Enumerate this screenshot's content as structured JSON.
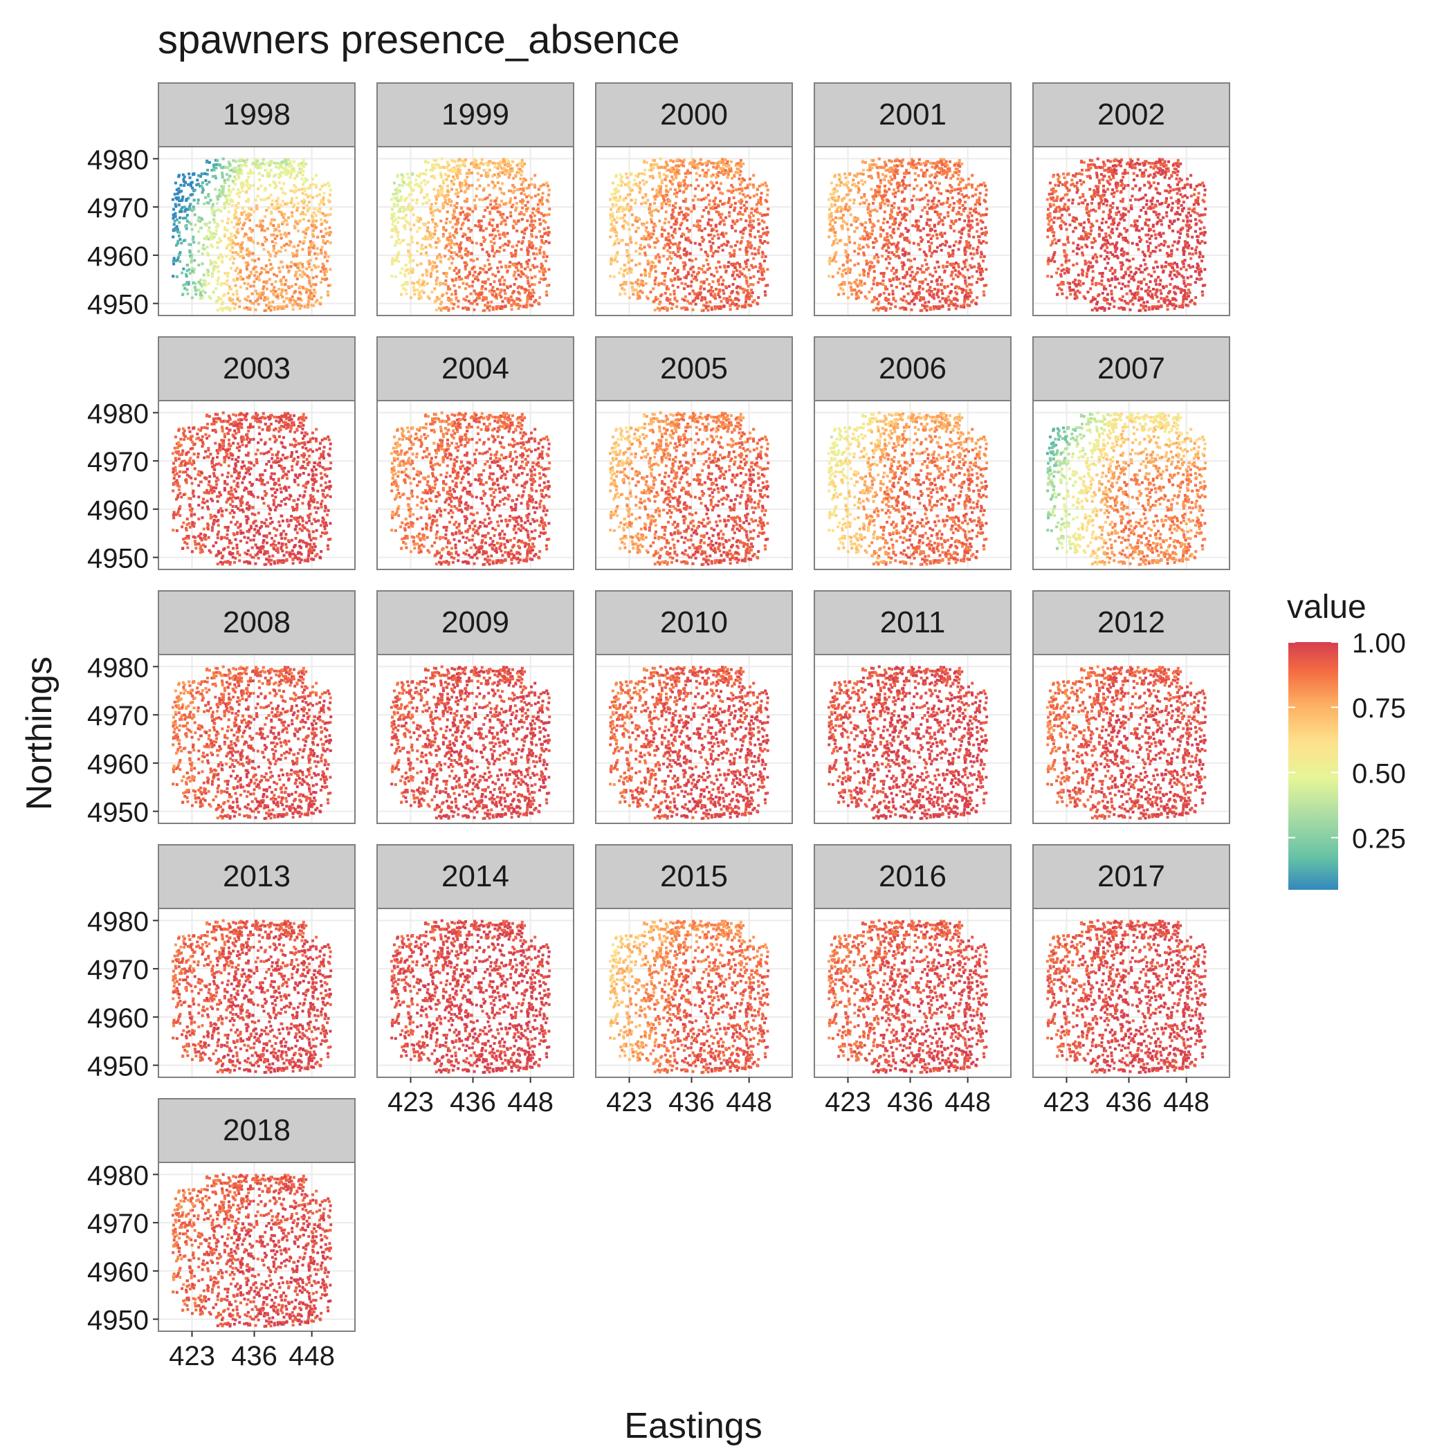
{
  "chart_data": {
    "type": "scatter",
    "title": "spawners presence_absence",
    "xlabel": "Eastings",
    "ylabel": "Northings",
    "x_ticks": [
      423,
      436,
      448
    ],
    "y_ticks": [
      4950,
      4960,
      4970,
      4980
    ],
    "xlim": [
      416,
      457
    ],
    "ylim": [
      4947.5,
      4982.5
    ],
    "facet_layout": "wrap, 5 columns",
    "legend": {
      "title": "value",
      "position": "right",
      "breaks": [
        "1.00",
        "0.75",
        "0.50",
        "0.25"
      ],
      "break_values": [
        1.0,
        0.75,
        0.5,
        0.25
      ],
      "range": [
        0.05,
        1.0
      ],
      "palette": "Spectral",
      "colors": [
        "#3288bd",
        "#66c2a5",
        "#abdda4",
        "#e6f598",
        "#fee08b",
        "#fdae61",
        "#f46d43",
        "#d53e4f"
      ]
    },
    "panels": [
      {
        "label": "1998",
        "mean_value": 0.55
      },
      {
        "label": "1999",
        "mean_value": 0.75
      },
      {
        "label": "2000",
        "mean_value": 0.82
      },
      {
        "label": "2001",
        "mean_value": 0.86
      },
      {
        "label": "2002",
        "mean_value": 0.95
      },
      {
        "label": "2003",
        "mean_value": 0.95
      },
      {
        "label": "2004",
        "mean_value": 0.9
      },
      {
        "label": "2005",
        "mean_value": 0.85
      },
      {
        "label": "2006",
        "mean_value": 0.78
      },
      {
        "label": "2007",
        "mean_value": 0.66
      },
      {
        "label": "2008",
        "mean_value": 0.92
      },
      {
        "label": "2009",
        "mean_value": 0.95
      },
      {
        "label": "2010",
        "mean_value": 0.93
      },
      {
        "label": "2011",
        "mean_value": 0.96
      },
      {
        "label": "2012",
        "mean_value": 0.93
      },
      {
        "label": "2013",
        "mean_value": 0.94
      },
      {
        "label": "2014",
        "mean_value": 0.97
      },
      {
        "label": "2015",
        "mean_value": 0.84
      },
      {
        "label": "2016",
        "mean_value": 0.93
      },
      {
        "label": "2017",
        "mean_value": 0.95
      },
      {
        "label": "2018",
        "mean_value": 0.93
      }
    ]
  }
}
